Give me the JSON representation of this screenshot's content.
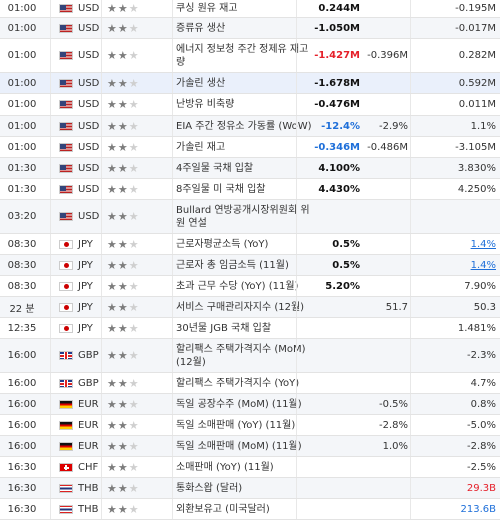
{
  "rows": [
    {
      "time": "01:00",
      "flag": "us",
      "currency": "USD",
      "stars": 2,
      "event": "쿠싱 원유 재고",
      "actual": "0.244M",
      "actual_color": "black",
      "forecast": "",
      "previous": "-0.195M",
      "prev_color": "normal",
      "h": 18
    },
    {
      "time": "01:00",
      "flag": "us",
      "currency": "USD",
      "stars": 2,
      "event": "증류유 생산",
      "actual": "-1.050M",
      "actual_color": "black",
      "forecast": "",
      "previous": "-0.017M",
      "prev_color": "normal",
      "h": 21
    },
    {
      "time": "01:00",
      "flag": "us",
      "currency": "USD",
      "stars": 2,
      "event": "에너지 정보청 주간 정제유 재고량",
      "actual": "-1.427M",
      "actual_color": "red",
      "forecast": "-0.396M",
      "previous": "0.282M",
      "prev_color": "normal",
      "h": 34
    },
    {
      "time": "01:00",
      "flag": "us",
      "currency": "USD",
      "stars": 2,
      "event": "가솔린 생산",
      "actual": "-1.678M",
      "actual_color": "black",
      "forecast": "",
      "previous": "0.592M",
      "prev_color": "normal",
      "h": 21,
      "hl": true
    },
    {
      "time": "01:00",
      "flag": "us",
      "currency": "USD",
      "stars": 2,
      "event": "난방유 비축량",
      "actual": "-0.476M",
      "actual_color": "black",
      "forecast": "",
      "previous": "0.011M",
      "prev_color": "normal",
      "h": 22
    },
    {
      "time": "01:00",
      "flag": "us",
      "currency": "USD",
      "stars": 2,
      "event": "EIA 주간 정유소 가동률 (WoW)",
      "actual": "-12.4%",
      "actual_color": "blue",
      "forecast": "-2.9%",
      "previous": "1.1%",
      "prev_color": "normal",
      "h": 21
    },
    {
      "time": "01:00",
      "flag": "us",
      "currency": "USD",
      "stars": 2,
      "event": "가솔린 재고",
      "actual": "-0.346M",
      "actual_color": "blue",
      "forecast": "-0.486M",
      "previous": "-3.105M",
      "prev_color": "normal",
      "h": 21
    },
    {
      "time": "01:30",
      "flag": "us",
      "currency": "USD",
      "stars": 2,
      "event": "4주일물 국채 입찰",
      "actual": "4.100%",
      "actual_color": "black",
      "forecast": "",
      "previous": "3.830%",
      "prev_color": "normal",
      "h": 21
    },
    {
      "time": "01:30",
      "flag": "us",
      "currency": "USD",
      "stars": 2,
      "event": "8주일물 미 국채 입찰",
      "actual": "4.430%",
      "actual_color": "black",
      "forecast": "",
      "previous": "4.250%",
      "prev_color": "normal",
      "h": 21
    },
    {
      "time": "03:20",
      "flag": "us",
      "currency": "USD",
      "stars": 2,
      "event": "Bullard 연방공개시장위원회 위원 연설",
      "actual": "",
      "actual_color": "black",
      "forecast": "",
      "previous": "",
      "prev_color": "normal",
      "h": 34
    },
    {
      "time": "08:30",
      "flag": "jp",
      "currency": "JPY",
      "stars": 2,
      "event": "근로자평균소득 (YoY)",
      "actual": "0.5%",
      "actual_color": "black",
      "forecast": "",
      "previous": "1.4%",
      "prev_color": "link",
      "h": 21
    },
    {
      "time": "08:30",
      "flag": "jp",
      "currency": "JPY",
      "stars": 2,
      "event": "근로자 총 임금소득 (11월)",
      "actual": "0.5%",
      "actual_color": "black",
      "forecast": "",
      "previous": "1.4%",
      "prev_color": "link",
      "h": 21
    },
    {
      "time": "08:30",
      "flag": "jp",
      "currency": "JPY",
      "stars": 2,
      "event": "초과 근무 수당 (YoY) (11월)",
      "actual": "5.20%",
      "actual_color": "black",
      "forecast": "",
      "previous": "7.90%",
      "prev_color": "normal",
      "h": 21
    },
    {
      "time": "22 분",
      "flag": "jp",
      "currency": "JPY",
      "stars": 2,
      "event": "서비스 구매관리자지수 (12월)",
      "actual": "",
      "actual_color": "black",
      "forecast": "51.7",
      "previous": "50.3",
      "prev_color": "normal",
      "h": 21
    },
    {
      "time": "12:35",
      "flag": "jp",
      "currency": "JPY",
      "stars": 2,
      "event": "30년물 JGB 국채 입찰",
      "actual": "",
      "actual_color": "black",
      "forecast": "",
      "previous": "1.481%",
      "prev_color": "normal",
      "h": 21
    },
    {
      "time": "16:00",
      "flag": "gb",
      "currency": "GBP",
      "stars": 2,
      "event": "할리팩스 주택가격지수 (MoM) (12월)",
      "actual": "",
      "actual_color": "black",
      "forecast": "",
      "previous": "-2.3%",
      "prev_color": "normal",
      "h": 34
    },
    {
      "time": "16:00",
      "flag": "gb",
      "currency": "GBP",
      "stars": 2,
      "event": "할리팩스 주택가격지수 (YoY)",
      "actual": "",
      "actual_color": "black",
      "forecast": "",
      "previous": "4.7%",
      "prev_color": "normal",
      "h": 21
    },
    {
      "time": "16:00",
      "flag": "de",
      "currency": "EUR",
      "stars": 2,
      "event": "독일 공장수주 (MoM) (11월)",
      "actual": "",
      "actual_color": "black",
      "forecast": "-0.5%",
      "previous": "0.8%",
      "prev_color": "normal",
      "h": 21
    },
    {
      "time": "16:00",
      "flag": "de",
      "currency": "EUR",
      "stars": 2,
      "event": "독일 소매판매 (YoY) (11월)",
      "actual": "",
      "actual_color": "black",
      "forecast": "-2.8%",
      "previous": "-5.0%",
      "prev_color": "normal",
      "h": 21
    },
    {
      "time": "16:00",
      "flag": "de",
      "currency": "EUR",
      "stars": 2,
      "event": "독일 소매판매 (MoM) (11월)",
      "actual": "",
      "actual_color": "black",
      "forecast": "1.0%",
      "previous": "-2.8%",
      "prev_color": "normal",
      "h": 21
    },
    {
      "time": "16:30",
      "flag": "ch",
      "currency": "CHF",
      "stars": 2,
      "event": "소매판매 (YoY) (11월)",
      "actual": "",
      "actual_color": "black",
      "forecast": "",
      "previous": "-2.5%",
      "prev_color": "normal",
      "h": 21
    },
    {
      "time": "16:30",
      "flag": "th",
      "currency": "THB",
      "stars": 2,
      "event": "통화스왑 (달러)",
      "actual": "",
      "actual_color": "black",
      "forecast": "",
      "previous": "29.3B",
      "prev_color": "red",
      "h": 21
    },
    {
      "time": "16:30",
      "flag": "th",
      "currency": "THB",
      "stars": 2,
      "event": "외환보유고 (미국달러)",
      "actual": "",
      "actual_color": "black",
      "forecast": "",
      "previous": "213.6B",
      "prev_color": "blue",
      "h": 21
    }
  ],
  "icons": {
    "star": "star-icon",
    "flag_prefix": "flag-icon"
  }
}
